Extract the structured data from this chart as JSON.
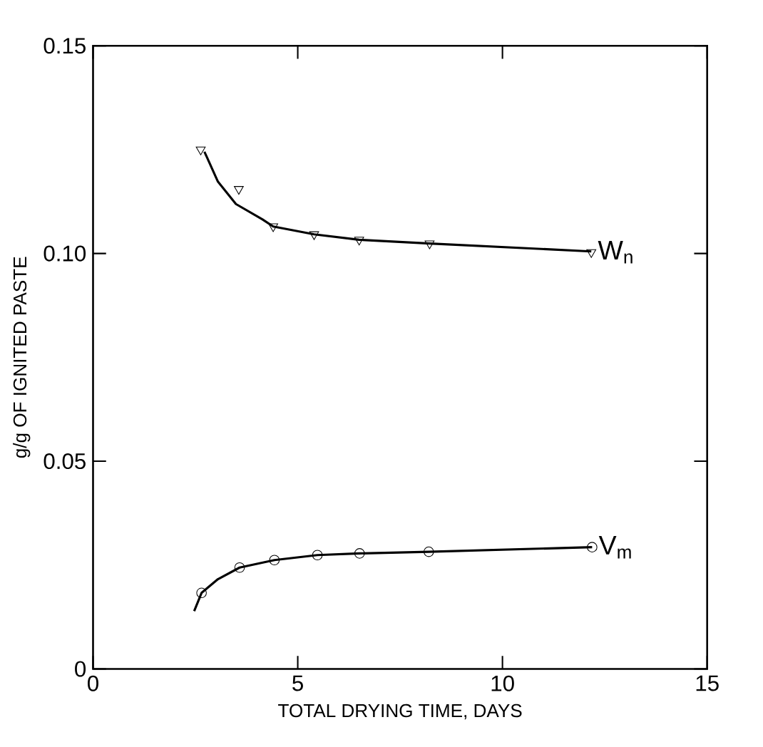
{
  "chart_data": {
    "type": "scatter",
    "xlabel": "TOTAL DRYING TIME, DAYS",
    "ylabel": "g/g OF IGNITED PASTE",
    "xlim": [
      0,
      15
    ],
    "ylim": [
      0,
      0.15
    ],
    "xticks": [
      0,
      5,
      10,
      15
    ],
    "yticks": [
      0,
      0.05,
      {
        "value": 0.1,
        "label": "0.10"
      },
      0.15
    ],
    "grid": false,
    "series": [
      {
        "name": "W$_{n}$",
        "marker": "triangle",
        "color": "#000000",
        "x": [
          2.63,
          3.56,
          4.4,
          5.4,
          6.5,
          8.22,
          12.17
        ],
        "values": [
          0.125,
          0.1155,
          0.1065,
          0.1046,
          0.1033,
          0.1024,
          0.1003
        ]
      },
      {
        "type": "line",
        "marker": "none",
        "color": "#000000",
        "x": [
          2.72,
          2.78,
          3.05,
          3.49,
          4.14,
          4.4,
          5.4,
          6.5,
          8.22,
          12.17
        ],
        "values": [
          0.1245,
          0.1232,
          0.1173,
          0.1119,
          0.1082,
          0.1065,
          0.1046,
          0.1033,
          0.1024,
          0.1005
        ]
      },
      {
        "name": "V$_{m}$",
        "marker": "circle",
        "color": "#000000",
        "x": [
          2.65,
          3.58,
          4.43,
          5.48,
          6.51,
          8.2,
          12.19
        ],
        "values": [
          0.0183,
          0.0244,
          0.0262,
          0.0274,
          0.0278,
          0.0282,
          0.0293
        ]
      },
      {
        "type": "line",
        "marker": "none",
        "color": "#000000",
        "x": [
          2.47,
          2.65,
          3.05,
          3.58,
          4.43,
          5.48,
          6.51,
          8.2,
          12.19
        ],
        "values": [
          0.0139,
          0.0183,
          0.0216,
          0.0244,
          0.0262,
          0.0274,
          0.0278,
          0.0282,
          0.0293
        ]
      }
    ]
  }
}
